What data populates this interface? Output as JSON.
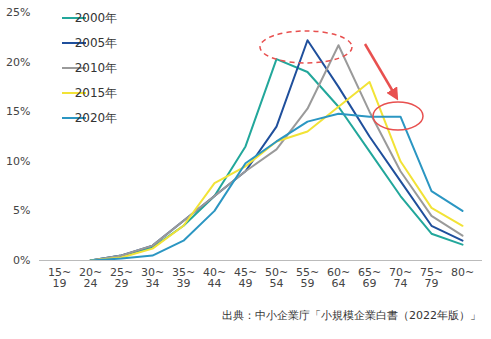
{
  "chart_data": {
    "type": "line",
    "caption": "出典：中小企業庁「小規模企業白書（2022年版）」",
    "categories": [
      "15~\n19",
      "20~\n24",
      "25~\n29",
      "30~\n34",
      "35~\n39",
      "40~\n44",
      "45~\n49",
      "50~\n54",
      "55~\n59",
      "60~\n64",
      "65~\n69",
      "70~\n74",
      "75~\n79",
      "80~"
    ],
    "series": [
      {
        "name": "2000年",
        "color": "#22a79b",
        "values": [
          null,
          0,
          0.5,
          1.3,
          3.5,
          6.5,
          11.5,
          20.3,
          19,
          15.5,
          11,
          6.5,
          2.7,
          1.6
        ]
      },
      {
        "name": "2005年",
        "color": "#1f4f9c",
        "values": [
          null,
          0,
          0.5,
          1.5,
          4,
          6.5,
          9,
          13.5,
          22.2,
          17.5,
          12.5,
          8,
          3.5,
          2
        ]
      },
      {
        "name": "2010年",
        "color": "#9a9a9a",
        "values": [
          null,
          0,
          0.5,
          1.5,
          4,
          6.5,
          9,
          11.2,
          15.3,
          21.7,
          15,
          9,
          4.5,
          2.5
        ]
      },
      {
        "name": "2015年",
        "color": "#f2e336",
        "values": [
          null,
          0,
          0.3,
          1.2,
          3.5,
          7.8,
          9.5,
          12,
          13,
          15.5,
          18,
          10,
          5.3,
          3.5
        ]
      },
      {
        "name": "2020年",
        "color": "#2b96c2",
        "values": [
          null,
          0,
          0.2,
          0.5,
          2,
          5,
          9.8,
          12,
          14,
          14.8,
          14.5,
          14.5,
          7,
          5
        ]
      }
    ],
    "ylim": [
      0,
      25
    ],
    "yticks": [
      {
        "value": 0,
        "label": "0%"
      },
      {
        "value": 5,
        "label": "5%"
      },
      {
        "value": 10,
        "label": "10%"
      },
      {
        "value": 15,
        "label": "15%"
      },
      {
        "value": 20,
        "label": "20%"
      },
      {
        "value": 25,
        "label": "25%"
      }
    ],
    "legend": "top-left",
    "grid": false
  }
}
